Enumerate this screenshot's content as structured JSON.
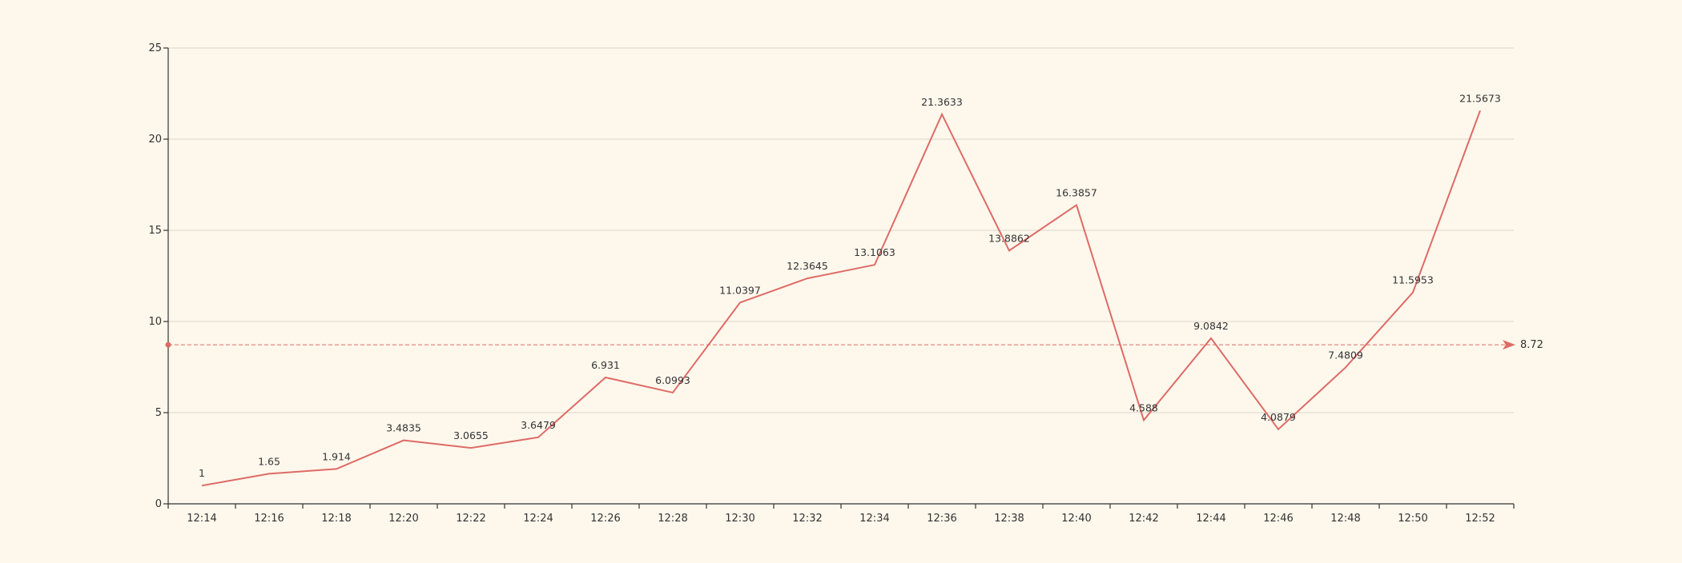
{
  "colors": {
    "background": "#fef7ec",
    "series": "#dd6b66",
    "grid": "#d9d6cc",
    "axis": "#333333",
    "text": "#333333"
  },
  "chart_data": {
    "type": "line",
    "title": "",
    "xlabel": "",
    "ylabel": "",
    "grid": true,
    "ylim": [
      0,
      25
    ],
    "yticks": [
      0,
      5,
      10,
      15,
      20,
      25
    ],
    "categories": [
      "12:14",
      "12:16",
      "12:18",
      "12:20",
      "12:22",
      "12:24",
      "12:26",
      "12:28",
      "12:30",
      "12:32",
      "12:34",
      "12:36",
      "12:38",
      "12:40",
      "12:42",
      "12:44",
      "12:46",
      "12:48",
      "12:50",
      "12:52"
    ],
    "series": [
      {
        "values": [
          1,
          1.65,
          1.914,
          3.4835,
          3.0655,
          3.6479,
          6.931,
          6.0993,
          11.0397,
          12.3645,
          13.1063,
          21.3633,
          13.8862,
          16.3857,
          4.588,
          9.0842,
          4.0879,
          7.4809,
          11.5953,
          21.5673
        ],
        "labels": [
          "1",
          "1.65",
          "1.914",
          "3.4835",
          "3.0655",
          "3.6479",
          "6.931",
          "6.0993",
          "11.0397",
          "12.3645",
          "13.1063",
          "21.3633",
          "13.8862",
          "16.3857",
          "4.588",
          "9.0842",
          "4.0879",
          "7.4809",
          "11.5953",
          "21.5673"
        ],
        "color": "#dd6b66"
      }
    ],
    "markline": {
      "value": 8.72,
      "label": "8.72",
      "style": "dashed"
    }
  }
}
